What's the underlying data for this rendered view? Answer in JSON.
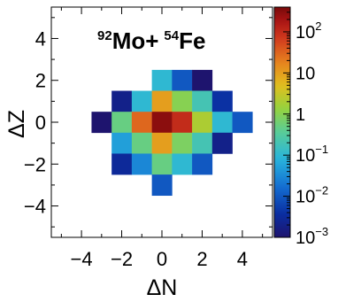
{
  "chart_data": {
    "type": "heatmap",
    "title_parts": {
      "proj_mass": "92",
      "proj_elem": "Mo+",
      "targ_mass": "54",
      "targ_elem": "Fe"
    },
    "xlabel": "ΔN",
    "ylabel": "ΔZ",
    "xlim": [
      -5.5,
      5.5
    ],
    "ylim": [
      -5.5,
      5.5
    ],
    "x_ticks": [
      -4,
      -2,
      0,
      2,
      4
    ],
    "y_ticks": [
      -4,
      -2,
      0,
      2,
      4
    ],
    "x_tick_labels": [
      "−4",
      "−2",
      "0",
      "2",
      "4"
    ],
    "y_tick_labels": [
      "−4",
      "−2",
      "0",
      "2",
      "4"
    ],
    "color_scale": "log",
    "color_range": [
      0.001,
      400
    ],
    "colorbar_ticks": [
      {
        "value": 0.001,
        "base": "10",
        "exp": "−3"
      },
      {
        "value": 0.01,
        "base": "10",
        "exp": "−2"
      },
      {
        "value": 0.1,
        "base": "10",
        "exp": "−1"
      },
      {
        "value": 1,
        "base": "1",
        "exp": ""
      },
      {
        "value": 10,
        "base": "10",
        "exp": ""
      },
      {
        "value": 100,
        "base": "10",
        "exp": "2"
      }
    ],
    "cells": [
      {
        "dn": 0,
        "dz": 2,
        "value": 0.1
      },
      {
        "dn": 1,
        "dz": 2,
        "value": 0.01
      },
      {
        "dn": 2,
        "dz": 2,
        "value": 0.001
      },
      {
        "dn": -2,
        "dz": 1,
        "value": 0.002
      },
      {
        "dn": -1,
        "dz": 1,
        "value": 0.1
      },
      {
        "dn": 0,
        "dz": 1,
        "value": 10
      },
      {
        "dn": 1,
        "dz": 1,
        "value": 1
      },
      {
        "dn": 2,
        "dz": 1,
        "value": 0.2
      },
      {
        "dn": 3,
        "dz": 1,
        "value": 0.004
      },
      {
        "dn": -3,
        "dz": 0,
        "value": 0.001
      },
      {
        "dn": -2,
        "dz": 0,
        "value": 0.5
      },
      {
        "dn": -1,
        "dz": 0,
        "value": 30
      },
      {
        "dn": 0,
        "dz": 0,
        "value": 300
      },
      {
        "dn": 1,
        "dz": 0,
        "value": 100
      },
      {
        "dn": 2,
        "dz": 0,
        "value": 2
      },
      {
        "dn": 3,
        "dz": 0,
        "value": 0.1
      },
      {
        "dn": 4,
        "dz": 0,
        "value": 0.01
      },
      {
        "dn": -2,
        "dz": -1,
        "value": 0.05
      },
      {
        "dn": -1,
        "dz": -1,
        "value": 0.5
      },
      {
        "dn": 0,
        "dz": -1,
        "value": 10
      },
      {
        "dn": 1,
        "dz": -1,
        "value": 0.8
      },
      {
        "dn": 2,
        "dz": -1,
        "value": 0.2
      },
      {
        "dn": 3,
        "dz": -1,
        "value": 0.002
      },
      {
        "dn": -2,
        "dz": -2,
        "value": 0.003
      },
      {
        "dn": -1,
        "dz": -2,
        "value": 0.03
      },
      {
        "dn": 0,
        "dz": -2,
        "value": 0.5
      },
      {
        "dn": 1,
        "dz": -2,
        "value": 0.1
      },
      {
        "dn": 2,
        "dz": -2,
        "value": 0.01
      },
      {
        "dn": 0,
        "dz": -3,
        "value": 0.01
      }
    ]
  }
}
